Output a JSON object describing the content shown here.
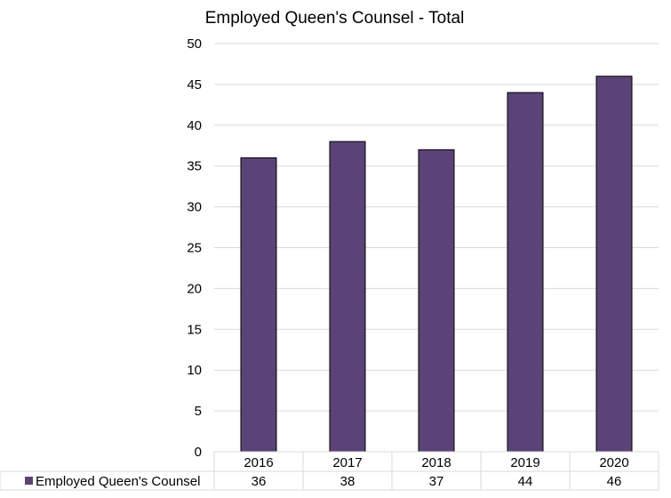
{
  "chart_data": {
    "type": "bar",
    "title": "Employed Queen's Counsel - Total",
    "categories": [
      "2016",
      "2017",
      "2018",
      "2019",
      "2020"
    ],
    "series": [
      {
        "name": "Employed Queen's Counsel",
        "values": [
          36,
          38,
          37,
          44,
          46
        ],
        "color": "#5b4378"
      }
    ],
    "ylim": [
      0,
      50
    ],
    "yticks": [
      "0",
      "5",
      "10",
      "15",
      "20",
      "25",
      "30",
      "35",
      "40",
      "45",
      "50"
    ],
    "grid": true,
    "legend": "data-table",
    "xlabel": "",
    "ylabel": ""
  }
}
